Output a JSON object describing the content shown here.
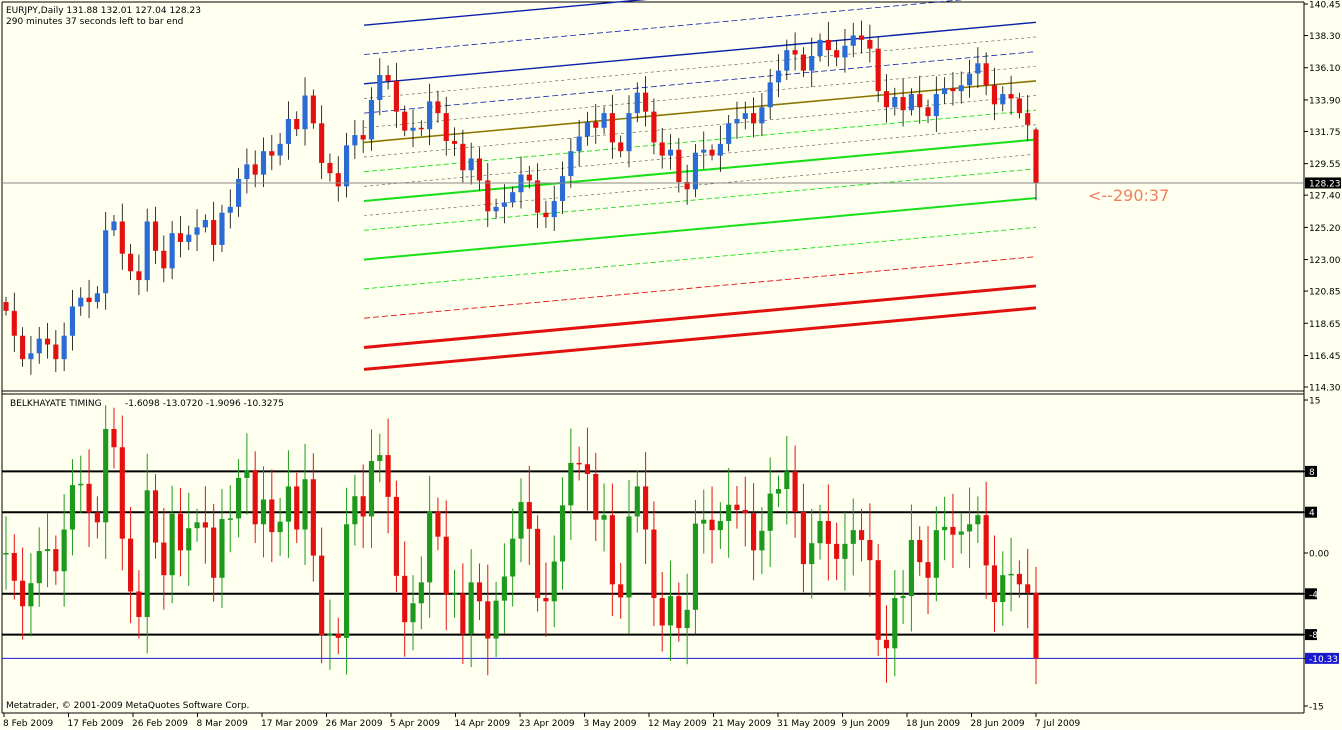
{
  "header": {
    "symbol_line": "EURJPY,Daily   131.88 132.01 127.04 128.23",
    "timer_line": "290 minutes 37 seconds left to bar end"
  },
  "timer_marker": "<--290:37",
  "copyright": "Metatrader, © 2001-2009 MetaQuotes Software Corp.",
  "indicator": {
    "name": "BELKHAYATE TIMING",
    "values_line": "-1.6098 -13.0720 -1.9096 -10.3275",
    "current_value": "-10.33"
  },
  "colors": {
    "background": "#fffff0",
    "bull": "#2a6bd6",
    "bear": "#e41010",
    "indicator_bull": "#1d9a1d",
    "indicator_bear": "#e41010",
    "regression_mid": "#8b7500",
    "band_upper": "#0a1fa8",
    "band_green": "#18e018",
    "band_red": "#e31010",
    "current_line": "#888888",
    "indicator_marker_line": "#1a1acc"
  },
  "chart_data": [
    {
      "type": "candlestick",
      "symbol": "EURJPY",
      "timeframe": "Daily",
      "ylim": [
        114.3,
        140.45
      ],
      "y_ticks": [
        "140.45",
        "138.30",
        "136.10",
        "133.90",
        "131.75",
        "129.55",
        "127.40",
        "125.20",
        "123.00",
        "120.85",
        "118.65",
        "116.45",
        "114.30"
      ],
      "current_price": "128.23",
      "last_bar": {
        "open": 131.88,
        "high": 132.01,
        "low": 127.04,
        "close": 128.23
      },
      "x_tick_labels": [
        "8 Feb 2009",
        "17 Feb 2009",
        "26 Feb 2009",
        "8 Mar 2009",
        "17 Mar 2009",
        "26 Mar 2009",
        "5 Apr 2009",
        "14 Apr 2009",
        "23 Apr 2009",
        "3 May 2009",
        "12 May 2009",
        "21 May 2009",
        "31 May 2009",
        "9 Jun 2009",
        "18 Jun 2009",
        "28 Jun 2009",
        "7 Jul 2009"
      ],
      "closes": [
        119.5,
        117.8,
        116.2,
        116.6,
        117.6,
        117.2,
        116.2,
        117.8,
        119.8,
        120.4,
        120.1,
        120.7,
        125.0,
        125.6,
        123.4,
        122.2,
        121.6,
        125.6,
        123.6,
        122.4,
        124.8,
        124.2,
        124.7,
        125.2,
        125.7,
        124.0,
        126.2,
        126.6,
        128.5,
        129.5,
        128.8,
        130.4,
        130.1,
        130.9,
        132.6,
        131.9,
        134.2,
        132.3,
        129.6,
        128.9,
        128.0,
        130.8,
        131.5,
        131.2,
        133.9,
        135.6,
        135.2,
        133.1,
        131.8,
        132.0,
        131.9,
        133.8,
        133.0,
        131.1,
        130.9,
        129.1,
        129.9,
        128.4,
        126.3,
        126.6,
        126.9,
        127.6,
        128.8,
        128.4,
        126.2,
        125.9,
        127.0,
        128.7,
        130.4,
        131.4,
        132.4,
        132.0,
        133.0,
        131.0,
        130.4,
        133.0,
        134.4,
        133.1,
        131.0,
        130.1,
        130.5,
        128.3,
        127.8,
        130.3,
        130.5,
        130.1,
        130.9,
        132.3,
        132.6,
        133.0,
        132.3,
        133.4,
        135.1,
        135.9,
        137.3,
        137.0,
        135.9,
        136.9,
        138.0,
        137.3,
        136.8,
        137.6,
        138.3,
        138.0,
        137.4,
        134.5,
        133.4,
        134.1,
        133.2,
        134.3,
        133.4,
        132.8,
        134.3,
        134.7,
        134.5,
        134.9,
        135.7,
        136.4,
        134.9,
        133.6,
        134.3,
        134.0,
        133.0,
        132.2,
        128.23
      ],
      "regression_channel": {
        "mid": [
          131.0,
          135.2
        ],
        "upper_offsets": [
          2.0,
          4.0,
          6.0,
          8.0,
          10.0
        ],
        "green_offsets": [
          -2.0,
          -4.0,
          -6.0,
          -8.0,
          -10.0
        ],
        "red_offsets": [
          -12.0,
          -14.0,
          -15.5
        ]
      }
    },
    {
      "type": "bar",
      "name": "BELKHAYATE TIMING",
      "ylim": [
        -15,
        15
      ],
      "y_ticks": [
        "15",
        "8",
        "4",
        "0.00",
        "-4",
        "-8",
        "-10.33",
        "-15"
      ],
      "levels": [
        8,
        4,
        -4,
        -8
      ]
    }
  ]
}
